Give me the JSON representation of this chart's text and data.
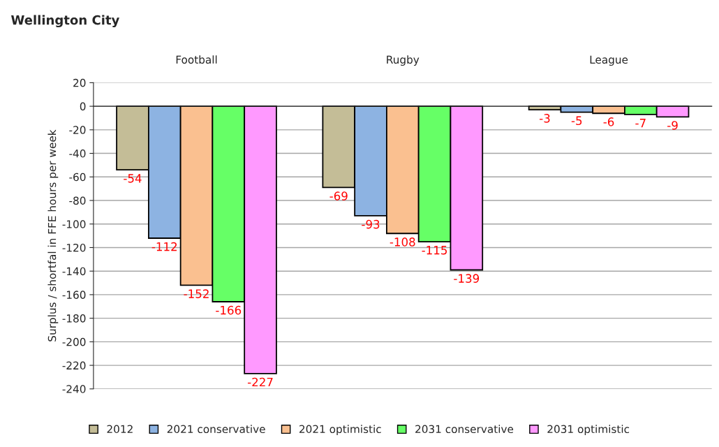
{
  "chart_data": {
    "type": "bar",
    "title": "Wellington City",
    "ylabel": "Surplus / shortfal in FFE hours per week",
    "categories": [
      "Football",
      "Rugby",
      "League"
    ],
    "series": [
      {
        "name": "2012",
        "color": "#c4bd97",
        "values": [
          -54,
          -69,
          -3
        ]
      },
      {
        "name": "2021 conservative",
        "color": "#8db3e2",
        "values": [
          -112,
          -93,
          -5
        ]
      },
      {
        "name": "2021 optimistic",
        "color": "#fac090",
        "values": [
          -152,
          -108,
          -6
        ]
      },
      {
        "name": "2031 conservative",
        "color": "#66ff66",
        "values": [
          -166,
          -115,
          -7
        ]
      },
      {
        "name": "2031 optimistic",
        "color": "#ff99ff",
        "values": [
          -227,
          -139,
          -9
        ]
      }
    ],
    "ylim": [
      -240,
      20
    ],
    "yticks": [
      -240,
      -220,
      -200,
      -180,
      -160,
      -140,
      -120,
      -100,
      -80,
      -60,
      -40,
      -20,
      0,
      20
    ],
    "data_labels": true,
    "legend": "bottom",
    "grid": "y"
  }
}
